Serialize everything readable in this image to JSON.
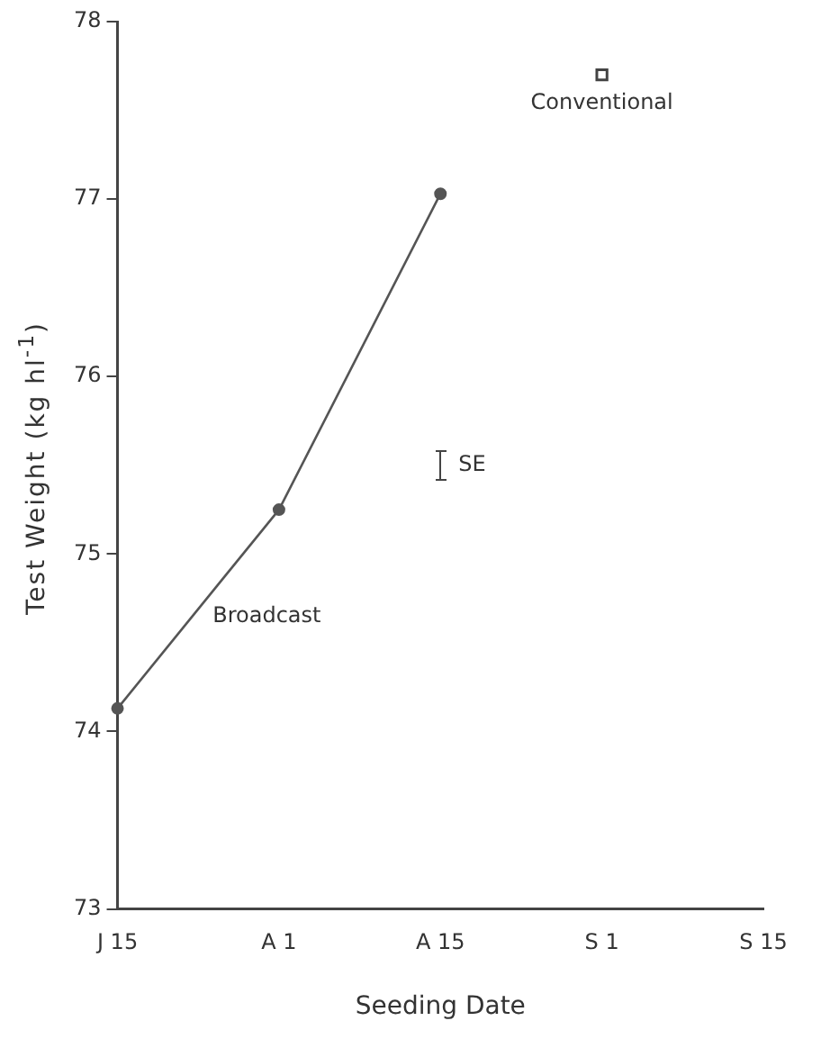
{
  "chart_data": {
    "type": "line",
    "xlabel": "Seeding Date",
    "ylabel": "Test Weight (kg hl$^{-1}$)",
    "categories": [
      "J 15",
      "A 1",
      "A 15",
      "S 1",
      "S 15"
    ],
    "series": [
      {
        "name": "Broadcast",
        "color": "#555555",
        "marker": "circle",
        "values": [
          74.13,
          75.25,
          77.03,
          null,
          null
        ]
      },
      {
        "name": "Conventional",
        "type": "scatter",
        "color": "#444444",
        "marker": "square",
        "values": [
          null,
          null,
          null,
          77.7,
          null
        ]
      }
    ],
    "annotations": [
      "SE"
    ],
    "ylim": [
      73,
      78
    ],
    "yticks": [
      73,
      74,
      75,
      76,
      77,
      78
    ],
    "grid": false,
    "legend": false
  }
}
